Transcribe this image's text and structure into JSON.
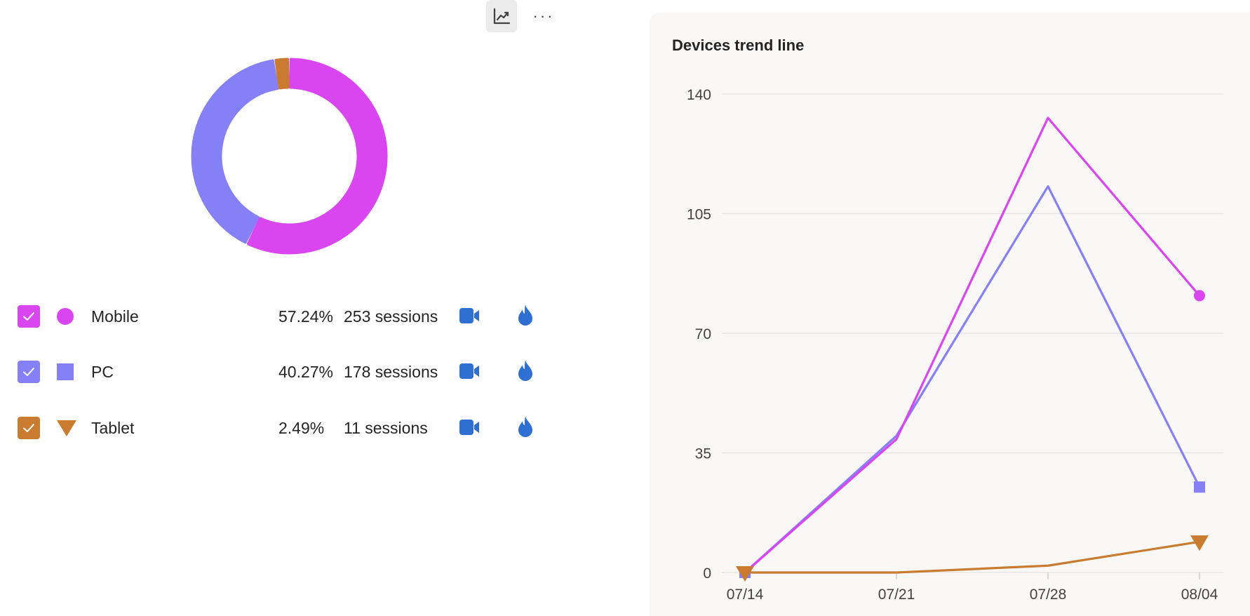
{
  "toolbar": {
    "trend_icon": "line-chart-icon",
    "more_label": "···"
  },
  "legend": [
    {
      "name": "Mobile",
      "percent": "57.24%",
      "sessions": "253 sessions",
      "color": "#d946ef",
      "marker": "circle",
      "checked": true
    },
    {
      "name": "PC",
      "percent": "40.27%",
      "sessions": "178 sessions",
      "color": "#8580f6",
      "marker": "square",
      "checked": true
    },
    {
      "name": "Tablet",
      "percent": "2.49%",
      "sessions": "11 sessions",
      "color": "#c97b30",
      "marker": "triangle-down",
      "checked": true
    }
  ],
  "icons": {
    "recording": "video-camera-icon",
    "heatmap": "flame-icon",
    "accent": "#2f6fd1"
  },
  "trend": {
    "title": "Devices trend line"
  },
  "chart_data": [
    {
      "type": "pie",
      "variant": "donut",
      "categories": [
        "Mobile",
        "PC",
        "Tablet"
      ],
      "values": [
        253,
        178,
        11
      ],
      "colors": [
        "#d946ef",
        "#8580f6",
        "#c97b30"
      ]
    },
    {
      "type": "line",
      "title": "Devices trend line",
      "x": [
        "07/14",
        "07/21",
        "07/28",
        "08/04"
      ],
      "ylim": [
        0,
        140
      ],
      "yticks": [
        0,
        35,
        70,
        105,
        140
      ],
      "grid": true,
      "series": [
        {
          "name": "Mobile",
          "values": [
            0,
            39,
            133,
            81
          ],
          "color": "#d946ef",
          "marker": "circle"
        },
        {
          "name": "PC",
          "values": [
            0,
            40,
            113,
            25
          ],
          "color": "#8580f6",
          "marker": "square"
        },
        {
          "name": "Tablet",
          "values": [
            0,
            0,
            2,
            9
          ],
          "color": "#c97b30",
          "marker": "triangle-down"
        }
      ]
    }
  ]
}
